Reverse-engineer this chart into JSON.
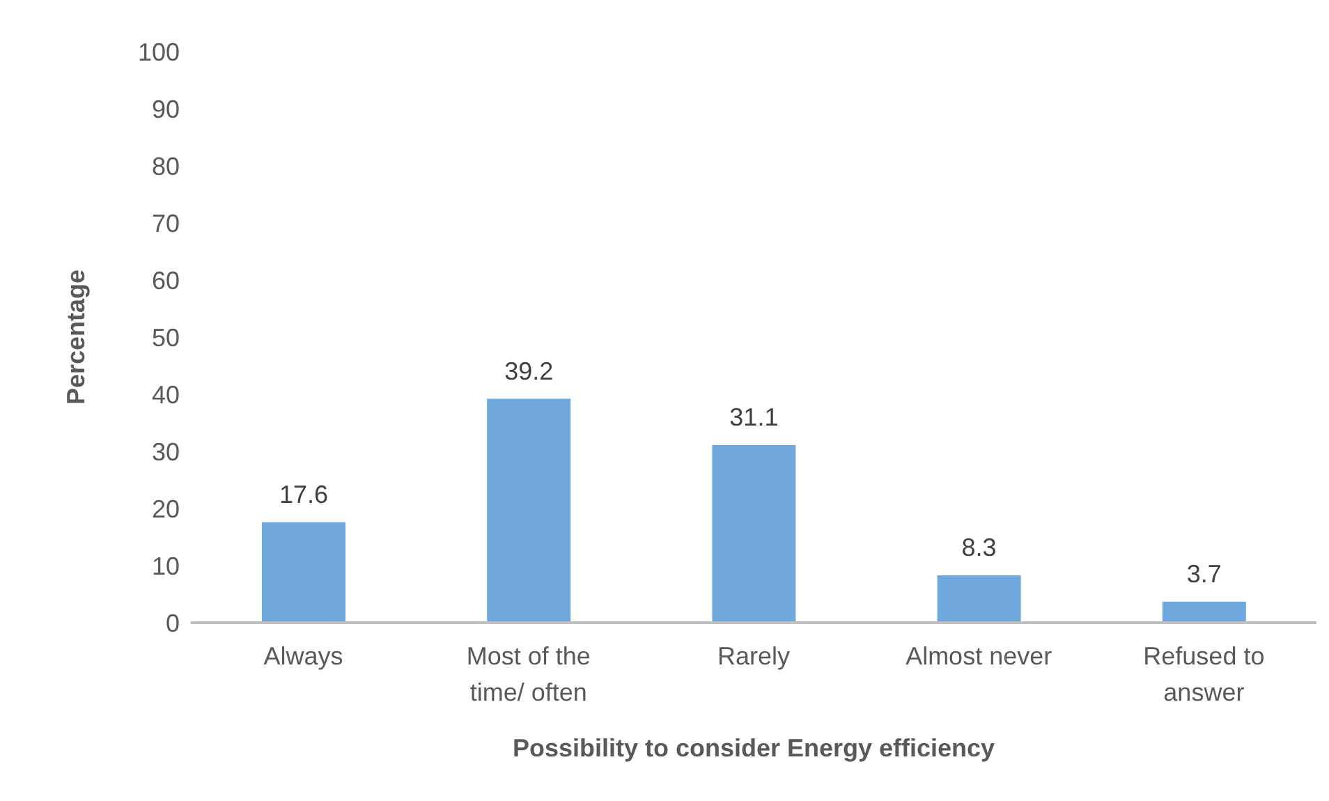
{
  "chart_data": {
    "type": "bar",
    "xlabel": "Possibility to consider Energy efficiency",
    "ylabel": "Percentage",
    "categories": [
      "Always",
      "Most of the time/ often",
      "Rarely",
      "Almost never",
      "Refused to answer"
    ],
    "values": [
      17.6,
      39.2,
      31.1,
      8.3,
      3.7
    ],
    "color": "#6fa8dc",
    "ylim": [
      0,
      100
    ],
    "yticks": [
      0,
      10,
      20,
      30,
      40,
      50,
      60,
      70,
      80,
      90,
      100
    ],
    "grid": false,
    "data_labels": true
  }
}
